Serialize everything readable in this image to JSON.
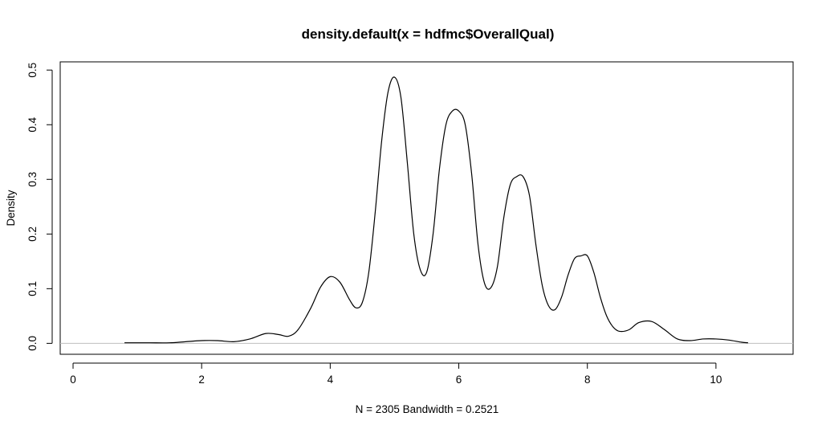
{
  "chart_data": {
    "type": "line",
    "title": "density.default(x = hdfmc$OverallQual)",
    "xlabel": "N = 2305   Bandwidth = 0.2521",
    "ylabel": "Density",
    "xlim": [
      -0.2,
      11.2
    ],
    "ylim": [
      -0.02,
      0.515
    ],
    "x_ticks": [
      0,
      2,
      4,
      6,
      8,
      10
    ],
    "x_tick_labels": [
      "0",
      "2",
      "4",
      "6",
      "8",
      "10"
    ],
    "y_ticks": [
      0.0,
      0.1,
      0.2,
      0.3,
      0.4,
      0.5
    ],
    "y_tick_labels": [
      "0.0",
      "0.1",
      "0.2",
      "0.3",
      "0.4",
      "0.5"
    ],
    "grid": false,
    "zero_baseline": true,
    "line_color": "#000000",
    "baseline_color": "#bebebe",
    "series": [
      {
        "x": [
          0.8,
          1.0,
          1.2,
          1.5,
          1.75,
          2.0,
          2.25,
          2.5,
          2.75,
          3.0,
          3.2,
          3.35,
          3.5,
          3.7,
          3.85,
          4.0,
          4.15,
          4.3,
          4.4,
          4.5,
          4.6,
          4.7,
          4.8,
          4.9,
          5.0,
          5.1,
          5.2,
          5.3,
          5.4,
          5.5,
          5.6,
          5.7,
          5.8,
          5.9,
          6.0,
          6.1,
          6.2,
          6.3,
          6.4,
          6.5,
          6.6,
          6.7,
          6.8,
          6.9,
          7.0,
          7.1,
          7.2,
          7.3,
          7.4,
          7.5,
          7.6,
          7.7,
          7.8,
          7.9,
          8.0,
          8.1,
          8.2,
          8.3,
          8.4,
          8.5,
          8.65,
          8.8,
          9.0,
          9.2,
          9.4,
          9.6,
          9.8,
          10.0,
          10.2,
          10.4,
          10.5
        ],
        "y": [
          0.001,
          0.001,
          0.001,
          0.001,
          0.003,
          0.005,
          0.005,
          0.003,
          0.008,
          0.018,
          0.016,
          0.013,
          0.025,
          0.065,
          0.103,
          0.122,
          0.112,
          0.08,
          0.065,
          0.075,
          0.13,
          0.24,
          0.37,
          0.46,
          0.487,
          0.45,
          0.33,
          0.2,
          0.135,
          0.13,
          0.2,
          0.32,
          0.4,
          0.425,
          0.425,
          0.4,
          0.31,
          0.18,
          0.11,
          0.102,
          0.14,
          0.23,
          0.29,
          0.305,
          0.305,
          0.27,
          0.18,
          0.105,
          0.068,
          0.062,
          0.085,
          0.125,
          0.155,
          0.16,
          0.16,
          0.13,
          0.085,
          0.05,
          0.03,
          0.022,
          0.025,
          0.038,
          0.04,
          0.025,
          0.008,
          0.005,
          0.008,
          0.008,
          0.006,
          0.002,
          0.001
        ]
      }
    ]
  }
}
